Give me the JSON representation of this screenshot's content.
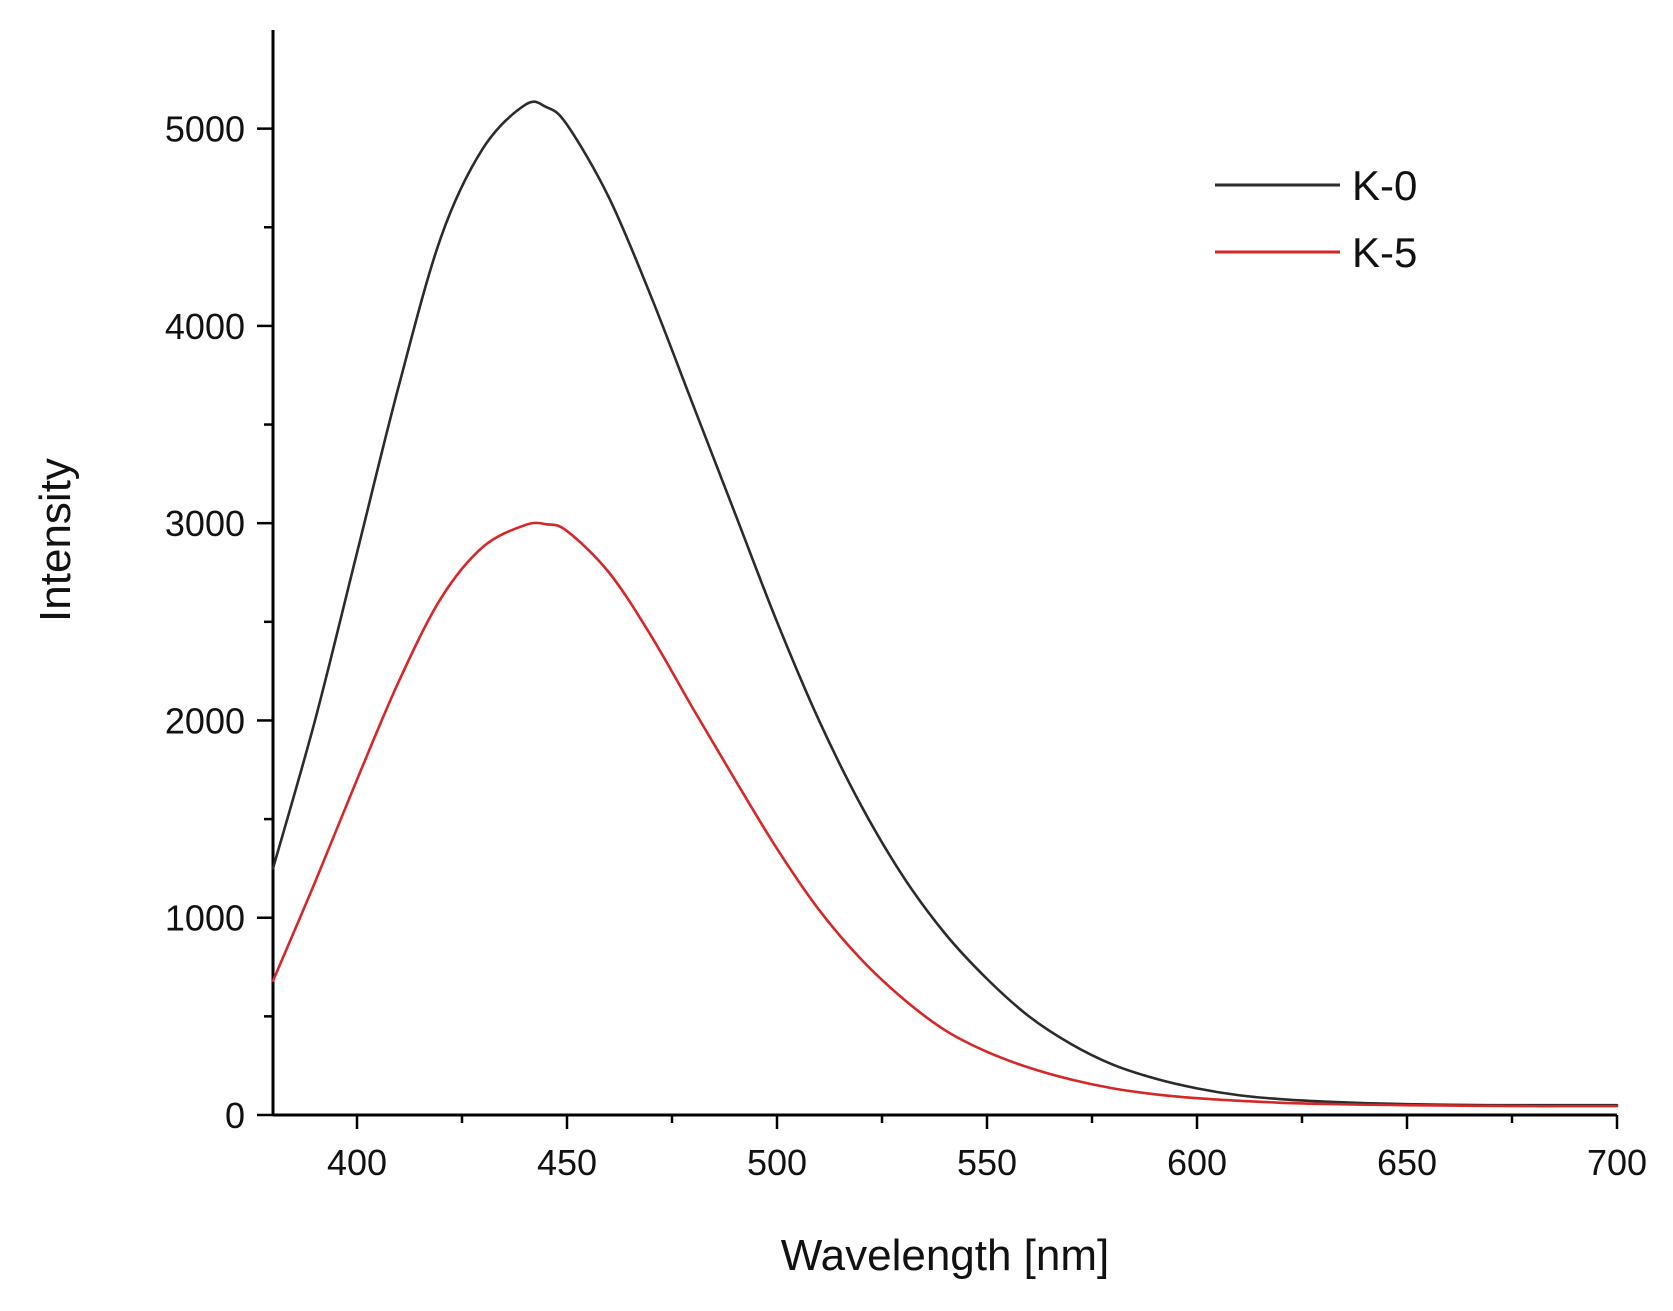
{
  "chart_data": {
    "type": "line",
    "title": "",
    "xlabel": "Wavelength [nm]",
    "ylabel": "Intensity",
    "xlim": [
      380,
      700
    ],
    "ylim": [
      0,
      5500
    ],
    "x_ticks": [
      400,
      450,
      500,
      550,
      600,
      650,
      700
    ],
    "x_tick_labels": [
      "400",
      "450",
      "500",
      "550",
      "600",
      "650",
      "700"
    ],
    "x_minor_ticks": [
      425,
      475,
      525,
      575,
      625,
      675
    ],
    "y_ticks": [
      0,
      1000,
      2000,
      3000,
      4000,
      5000
    ],
    "y_tick_labels": [
      "0",
      "1000",
      "2000",
      "3000",
      "4000",
      "5000"
    ],
    "y_minor_ticks": [
      500,
      1500,
      2500,
      3500,
      4500
    ],
    "grid": false,
    "legend_position": "top-right",
    "series": [
      {
        "name": "K-0",
        "color": "#2b2b2b",
        "x": [
          380,
          390,
          400,
          410,
          420,
          430,
          440,
          445,
          450,
          460,
          470,
          480,
          490,
          500,
          510,
          520,
          530,
          540,
          550,
          560,
          570,
          580,
          590,
          600,
          610,
          620,
          630,
          640,
          650,
          660,
          670,
          680,
          690,
          700
        ],
        "y": [
          1250,
          2000,
          2850,
          3700,
          4450,
          4900,
          5120,
          5110,
          5020,
          4650,
          4150,
          3600,
          3050,
          2500,
          2000,
          1570,
          1210,
          920,
          690,
          500,
          360,
          255,
          185,
          135,
          100,
          80,
          68,
          60,
          55,
          52,
          50,
          50,
          50,
          50
        ]
      },
      {
        "name": "K-5",
        "color": "#d62728",
        "x": [
          380,
          390,
          400,
          410,
          420,
          430,
          440,
          445,
          450,
          460,
          470,
          480,
          490,
          500,
          510,
          520,
          530,
          540,
          550,
          560,
          570,
          580,
          590,
          600,
          610,
          620,
          630,
          640,
          650,
          660,
          670,
          680,
          690,
          700
        ],
        "y": [
          680,
          1180,
          1700,
          2200,
          2620,
          2880,
          2990,
          2995,
          2960,
          2750,
          2430,
          2060,
          1700,
          1350,
          1040,
          790,
          590,
          430,
          320,
          240,
          180,
          135,
          105,
          85,
          72,
          62,
          56,
          52,
          50,
          48,
          46,
          45,
          45,
          45
        ]
      }
    ]
  }
}
